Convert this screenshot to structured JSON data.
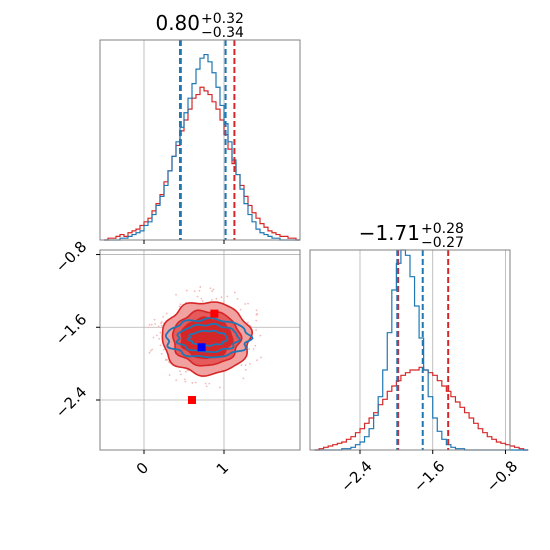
{
  "colors": {
    "red": "#d62728",
    "blue": "#1f77b4",
    "red_fill_light": "#f2a1a1",
    "red_fill_mid": "#e55a5a",
    "red_fill_dark": "#d62728",
    "marker_red": "#ff0000",
    "marker_blue": "#0000ff",
    "grid": "#b0b0b0",
    "axis": "#808080"
  },
  "chart_data": [
    {
      "type": "histogram",
      "panel": "marginal-x",
      "title_main": "0.80",
      "title_plus": "+0.32",
      "title_minus": "−0.34",
      "xlim": [
        -0.55,
        1.95
      ],
      "ylim": [
        0,
        110
      ],
      "bin_edges_start": -0.5,
      "bin_width": 0.05,
      "series": [
        {
          "color": "red",
          "counts": [
            0,
            1,
            1,
            2,
            3,
            2,
            4,
            5,
            6,
            8,
            10,
            12,
            16,
            20,
            25,
            32,
            38,
            46,
            52,
            60,
            66,
            72,
            78,
            80,
            84,
            82,
            80,
            76,
            72,
            66,
            58,
            50,
            42,
            36,
            30,
            24,
            19,
            15,
            12,
            9,
            7,
            5,
            4,
            3,
            2,
            2,
            1,
            1,
            0
          ]
        },
        {
          "color": "blue",
          "counts": [
            0,
            0,
            0,
            0,
            1,
            1,
            2,
            3,
            4,
            5,
            8,
            10,
            14,
            19,
            24,
            30,
            38,
            46,
            54,
            62,
            70,
            78,
            86,
            94,
            100,
            102,
            98,
            92,
            84,
            74,
            64,
            54,
            44,
            36,
            28,
            20,
            14,
            10,
            6,
            4,
            3,
            2,
            1,
            1,
            0,
            0,
            0,
            0,
            0
          ]
        }
      ],
      "quantile_lines": {
        "red": [
          0.46,
          1.13
        ],
        "blue": [
          0.45,
          1.02
        ]
      }
    },
    {
      "type": "histogram",
      "panel": "marginal-y",
      "title_main": "−1.71",
      "title_plus": "+0.28",
      "title_minus": "−0.27",
      "xlim": [
        -2.95,
        -0.75
      ],
      "ylim": [
        0,
        150
      ],
      "bin_edges_start": -2.9,
      "bin_width": 0.05,
      "xticks": [
        "−2.4",
        "−1.6",
        "−0.8"
      ],
      "xtick_values": [
        -2.4,
        -1.6,
        -0.8
      ],
      "series": [
        {
          "color": "red",
          "counts": [
            0,
            1,
            2,
            3,
            4,
            5,
            6,
            8,
            10,
            13,
            16,
            20,
            24,
            28,
            34,
            38,
            44,
            48,
            52,
            56,
            58,
            60,
            60,
            62,
            60,
            58,
            56,
            52,
            48,
            44,
            40,
            36,
            32,
            28,
            24,
            20,
            16,
            13,
            10,
            8,
            6,
            5,
            4,
            3,
            2,
            1,
            0
          ]
        },
        {
          "color": "blue",
          "counts": [
            0,
            0,
            0,
            0,
            0,
            0,
            1,
            1,
            2,
            4,
            6,
            10,
            16,
            26,
            40,
            60,
            88,
            120,
            140,
            150,
            146,
            130,
            108,
            84,
            60,
            40,
            24,
            14,
            8,
            4,
            2,
            1,
            1,
            0,
            0,
            0,
            0,
            0,
            0,
            0,
            0,
            0,
            0,
            0,
            0,
            0,
            0
          ]
        }
      ],
      "quantile_lines": {
        "red": [
          -1.98,
          -1.43
        ],
        "blue": [
          -1.99,
          -1.71
        ]
      }
    },
    {
      "type": "contour",
      "panel": "joint",
      "xlim": [
        -0.55,
        1.95
      ],
      "ylim": [
        -2.95,
        -0.75
      ],
      "xticks": [
        "0",
        "1"
      ],
      "xtick_values": [
        0,
        1
      ],
      "yticks": [
        "−0.8",
        "−1.6",
        "−2.4"
      ],
      "ytick_values": [
        -0.8,
        -1.6,
        -2.4
      ],
      "red_contours": [
        {
          "level": "outer",
          "center": [
            0.78,
            -1.72
          ],
          "radii": [
            0.55,
            0.4
          ]
        },
        {
          "level": "middle",
          "center": [
            0.78,
            -1.72
          ],
          "radii": [
            0.42,
            0.3
          ]
        },
        {
          "level": "inner",
          "center": [
            0.78,
            -1.72
          ],
          "radii": [
            0.32,
            0.22
          ]
        }
      ],
      "blue_contours": [
        {
          "level": "outer",
          "center": [
            0.8,
            -1.72
          ],
          "radii": [
            0.52,
            0.21
          ]
        },
        {
          "level": "middle",
          "center": [
            0.8,
            -1.72
          ],
          "radii": [
            0.38,
            0.15
          ]
        },
        {
          "level": "inner",
          "center": [
            0.8,
            -1.72
          ],
          "radii": [
            0.24,
            0.08
          ]
        }
      ],
      "markers": [
        {
          "color": "marker_red",
          "x": 0.6,
          "y": -2.4
        },
        {
          "color": "marker_red",
          "x": 0.88,
          "y": -1.45
        },
        {
          "color": "marker_blue",
          "x": 0.72,
          "y": -1.82
        }
      ]
    }
  ]
}
